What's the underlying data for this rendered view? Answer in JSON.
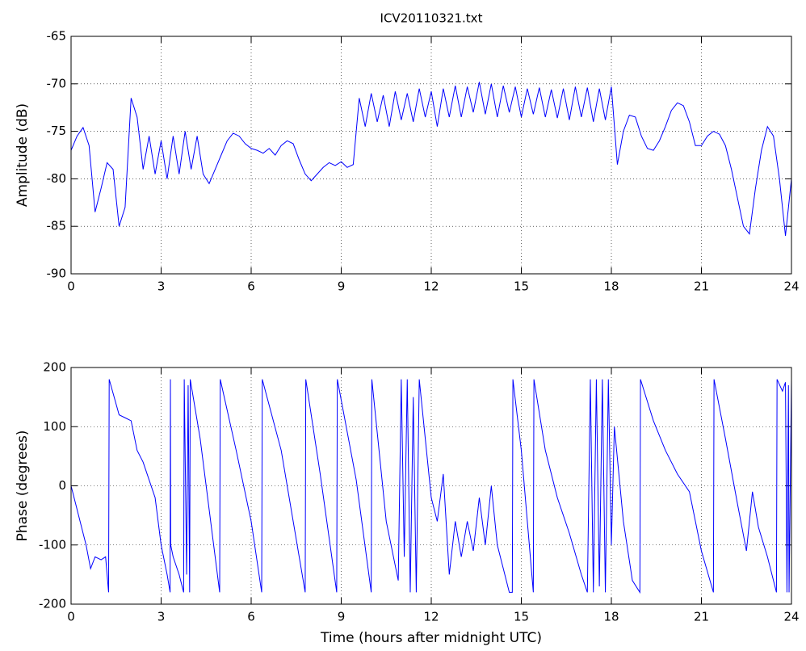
{
  "chart_data": [
    {
      "type": "line",
      "title": "ICV20110321.txt",
      "ylabel": "Amplitude (dB)",
      "color": "#0000ff",
      "grid": true,
      "xlim": [
        0,
        24
      ],
      "xticks": [
        0,
        3,
        6,
        9,
        12,
        15,
        18,
        21,
        24
      ],
      "ylim": [
        -90,
        -65
      ],
      "yticks": [
        -90,
        -85,
        -80,
        -75,
        -70,
        -65
      ],
      "x": [
        0,
        0.2,
        0.4,
        0.6,
        0.8,
        1,
        1.2,
        1.4,
        1.6,
        1.8,
        2,
        2.2,
        2.4,
        2.6,
        2.8,
        3,
        3.2,
        3.4,
        3.6,
        3.8,
        4,
        4.2,
        4.4,
        4.6,
        4.8,
        5,
        5.2,
        5.4,
        5.6,
        5.8,
        6,
        6.2,
        6.4,
        6.6,
        6.8,
        7,
        7.2,
        7.4,
        7.6,
        7.8,
        8,
        8.2,
        8.4,
        8.6,
        8.8,
        9,
        9.2,
        9.4,
        9.6,
        9.8,
        10,
        10.2,
        10.4,
        10.6,
        10.8,
        11,
        11.2,
        11.4,
        11.6,
        11.8,
        12,
        12.2,
        12.4,
        12.6,
        12.8,
        13,
        13.2,
        13.4,
        13.6,
        13.8,
        14,
        14.2,
        14.4,
        14.6,
        14.8,
        15,
        15.2,
        15.4,
        15.6,
        15.8,
        16,
        16.2,
        16.4,
        16.6,
        16.8,
        17,
        17.2,
        17.4,
        17.6,
        17.8,
        18,
        18.2,
        18.4,
        18.6,
        18.8,
        19,
        19.2,
        19.4,
        19.6,
        19.8,
        20,
        20.2,
        20.4,
        20.6,
        20.8,
        21,
        21.2,
        21.4,
        21.6,
        21.8,
        22,
        22.2,
        22.4,
        22.6,
        22.8,
        23,
        23.2,
        23.4,
        23.6,
        23.8,
        24
      ],
      "values": [
        -77,
        -75.5,
        -74.6,
        -76.5,
        -83.5,
        -81,
        -78.3,
        -79,
        -85,
        -83,
        -71.5,
        -73.5,
        -79,
        -75.5,
        -79.5,
        -76,
        -80,
        -75.5,
        -79.5,
        -75,
        -79,
        -75.5,
        -79.5,
        -80.5,
        -79,
        -77.5,
        -76,
        -75.2,
        -75.5,
        -76.3,
        -76.8,
        -77,
        -77.3,
        -76.8,
        -77.5,
        -76.5,
        -76,
        -76.3,
        -78,
        -79.5,
        -80.2,
        -79.5,
        -78.8,
        -78.3,
        -78.6,
        -78.2,
        -78.8,
        -78.5,
        -71.5,
        -74.5,
        -71,
        -74,
        -71.2,
        -74.5,
        -70.8,
        -73.8,
        -71,
        -74,
        -70.5,
        -73.5,
        -70.8,
        -74.5,
        -70.5,
        -73.5,
        -70.2,
        -73.5,
        -70.3,
        -73,
        -69.8,
        -73.2,
        -70,
        -73.5,
        -70.2,
        -73,
        -70.3,
        -73.5,
        -70.5,
        -73.2,
        -70.4,
        -73.5,
        -70.6,
        -73.6,
        -70.5,
        -73.8,
        -70.3,
        -73.5,
        -70.4,
        -74,
        -70.5,
        -73.8,
        -70.3,
        -78.5,
        -75,
        -73.3,
        -73.5,
        -75.5,
        -76.8,
        -77,
        -76,
        -74.5,
        -72.8,
        -72,
        -72.3,
        -74,
        -76.5,
        -76.5,
        -75.5,
        -75,
        -75.3,
        -76.5,
        -79,
        -82,
        -85,
        -85.8,
        -81,
        -77,
        -74.5,
        -75.5,
        -80,
        -86,
        -80
      ]
    },
    {
      "type": "line",
      "xlabel": "Time (hours after midnight UTC)",
      "ylabel": "Phase (degrees)",
      "color": "#0000ff",
      "grid": true,
      "xlim": [
        0,
        24
      ],
      "xticks": [
        0,
        3,
        6,
        9,
        12,
        15,
        18,
        21,
        24
      ],
      "ylim": [
        -200,
        200
      ],
      "yticks": [
        -200,
        -100,
        0,
        100,
        200
      ],
      "x": [
        0,
        0.2,
        0.5,
        0.65,
        0.8,
        1,
        1.15,
        1.25,
        1.27,
        1.6,
        1.8,
        2,
        2.2,
        2.4,
        2.6,
        2.8,
        3,
        3.2,
        3.3,
        3.31,
        3.32,
        3.4,
        3.6,
        3.75,
        3.77,
        3.85,
        3.9,
        3.95,
        3.97,
        4.3,
        4.6,
        4.95,
        4.97,
        5.5,
        6,
        6.35,
        6.37,
        7,
        7.8,
        7.82,
        8.3,
        8.85,
        8.87,
        9.5,
        10,
        10.02,
        10.5,
        10.9,
        11,
        11.1,
        11.2,
        11.3,
        11.4,
        11.5,
        11.6,
        11.8,
        12,
        12.2,
        12.4,
        12.6,
        12.8,
        13,
        13.2,
        13.4,
        13.6,
        13.8,
        14,
        14.2,
        14.4,
        14.6,
        14.7,
        14.72,
        15,
        15.4,
        15.42,
        15.8,
        16.2,
        16.6,
        17,
        17.2,
        17.3,
        17.4,
        17.5,
        17.6,
        17.7,
        17.8,
        17.9,
        18,
        18.1,
        18.4,
        18.7,
        18.95,
        18.97,
        19.4,
        19.8,
        20.2,
        20.6,
        21,
        21.4,
        21.42,
        21.8,
        22.2,
        22.5,
        22.7,
        22.9,
        23.2,
        23.5,
        23.52,
        23.7,
        23.8,
        23.85,
        23.9,
        23.92,
        24
      ],
      "values": [
        0,
        -40,
        -100,
        -140,
        -120,
        -125,
        -120,
        -180,
        180,
        120,
        115,
        110,
        60,
        40,
        10,
        -20,
        -100,
        -150,
        -180,
        180,
        -100,
        -120,
        -150,
        -180,
        180,
        -150,
        170,
        -180,
        180,
        80,
        -40,
        -180,
        180,
        60,
        -60,
        -180,
        180,
        60,
        -180,
        180,
        20,
        -180,
        180,
        10,
        -180,
        180,
        -60,
        -160,
        180,
        -120,
        180,
        -180,
        150,
        -180,
        180,
        80,
        -20,
        -60,
        20,
        -150,
        -60,
        -120,
        -60,
        -110,
        -20,
        -100,
        0,
        -100,
        -140,
        -180,
        -180,
        180,
        60,
        -180,
        180,
        60,
        -20,
        -80,
        -150,
        -180,
        180,
        -180,
        180,
        -170,
        180,
        -180,
        180,
        -100,
        100,
        -60,
        -160,
        -180,
        180,
        110,
        60,
        20,
        -10,
        -110,
        -180,
        180,
        80,
        -30,
        -110,
        -10,
        -70,
        -120,
        -180,
        180,
        160,
        175,
        -180,
        170,
        -180,
        180
      ]
    }
  ]
}
